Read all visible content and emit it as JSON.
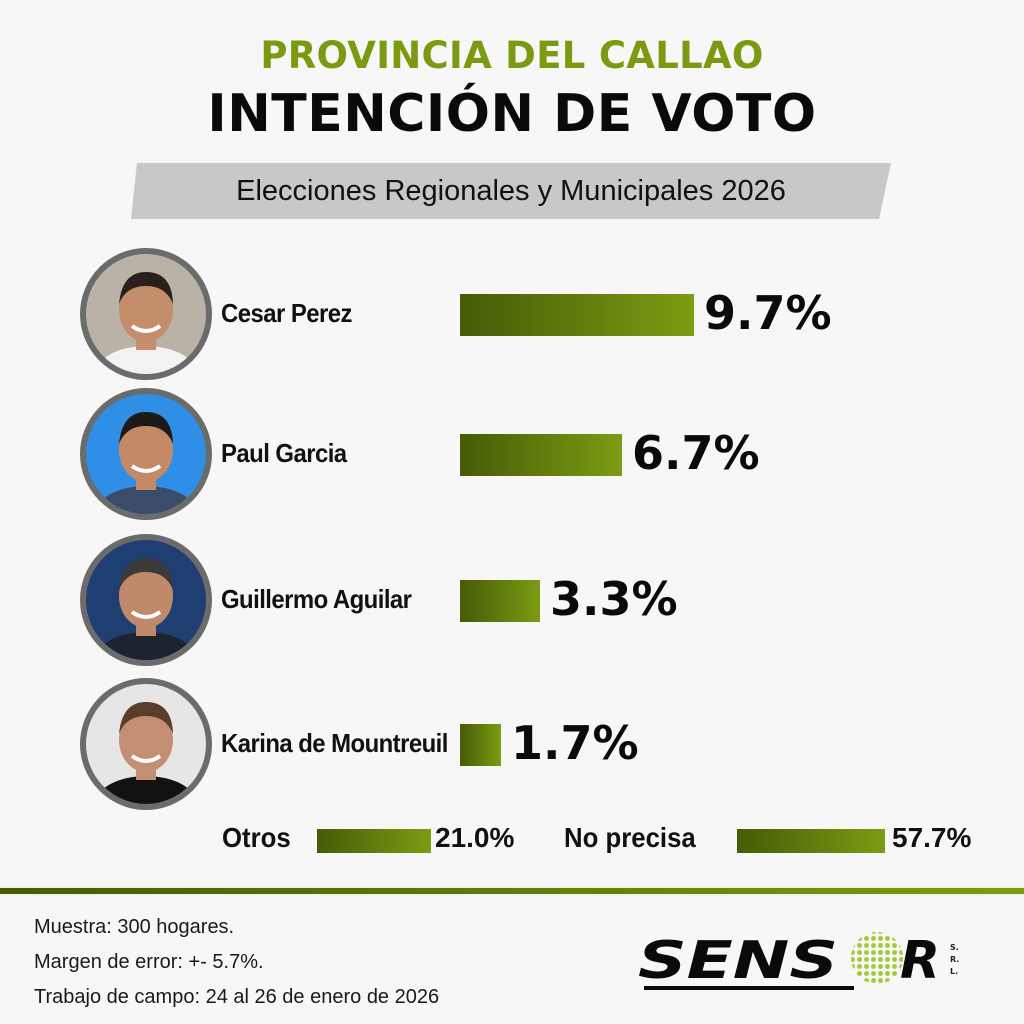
{
  "header": {
    "supertitle": "PROVINCIA DEL CALLAO",
    "title": "INTENCIÓN DE VOTO",
    "subtitle": "Elecciones Regionales y Municipales 2026"
  },
  "colors": {
    "accent_green": "#7a9a12",
    "bar_gradient_start": "#455b07",
    "bar_gradient_end": "#7c9c12",
    "banner_gray": "#c8c8c8",
    "avatar_border": "#6b6b6b",
    "background": "#f7f7f7"
  },
  "candidates": [
    {
      "name": "Cesar Perez",
      "value_label": "9.7%",
      "avatar_bg": "#b9b2a6",
      "skin": "#c48e6c",
      "hair": "#2a211c",
      "shirt": "#f2f2f2"
    },
    {
      "name": "Paul Garcia",
      "value_label": "6.7%",
      "avatar_bg": "#2f8ee6",
      "skin": "#c48a66",
      "hair": "#1e1a18",
      "shirt": "#3b4c6b"
    },
    {
      "name": "Guillermo Aguilar",
      "value_label": "3.3%",
      "avatar_bg": "#1f3f73",
      "skin": "#c08a6a",
      "hair": "#3a3a3a",
      "shirt": "#1e2330"
    },
    {
      "name": "Karina de Mountreuil",
      "value_label": "1.7%",
      "avatar_bg": "#e6e6e6",
      "skin": "#c48e72",
      "hair": "#5a3e2a",
      "shirt": "#111111"
    }
  ],
  "others": [
    {
      "label": "Otros",
      "value_label": "21.0%"
    },
    {
      "label": "No precisa",
      "value_label": "57.7%"
    }
  ],
  "footer": {
    "sample": "Muestra: 300 hogares.",
    "margin": "Margen de error: +- 5.7%.",
    "fieldwork": "Trabajo de campo: 24 al 26 de enero de 2026"
  },
  "logo": {
    "text_left": "SENS",
    "text_right": "R",
    "suffix": "S.R.L"
  },
  "chart_data": {
    "type": "bar",
    "orientation": "horizontal",
    "title": "INTENCIÓN DE VOTO",
    "subtitle": "PROVINCIA DEL CALLAO — Elecciones Regionales y Municipales 2026",
    "categories": [
      "Cesar Perez",
      "Paul Garcia",
      "Guillermo Aguilar",
      "Karina de Mountreuil",
      "Otros",
      "No precisa"
    ],
    "values": [
      9.7,
      6.7,
      3.3,
      1.7,
      21.0,
      57.7
    ],
    "unit": "%",
    "xlabel": "",
    "ylabel": "",
    "grid": false,
    "legend": null,
    "notes": [
      "Muestra: 300 hogares.",
      "Margen de error: +- 5.7%.",
      "Trabajo de campo: 24 al 26 de enero de 2026"
    ],
    "source": "SENSOR S.R.L"
  }
}
